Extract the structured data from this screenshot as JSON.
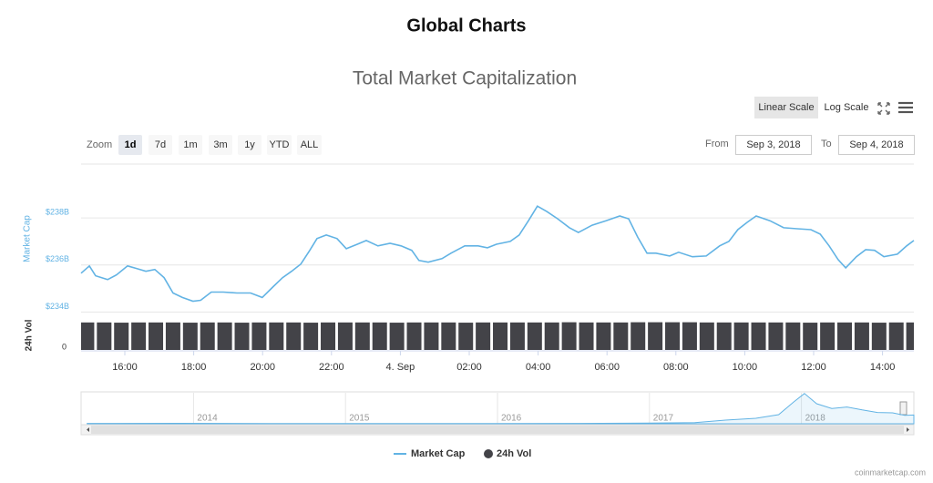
{
  "page": {
    "heading": "Global Charts"
  },
  "controls": {
    "zoom_label": "Zoom",
    "zoom": [
      "1d",
      "7d",
      "1m",
      "3m",
      "1y",
      "YTD",
      "ALL"
    ],
    "active_zoom": 0,
    "scales": [
      "Linear Scale",
      "Log Scale"
    ],
    "active_scale": 0,
    "from_label": "From",
    "from": "Sep 3, 2018",
    "to_label": "To",
    "to": "Sep 4, 2018"
  },
  "credit": "coinmarketcap.com",
  "chart_data": [
    {
      "type": "line",
      "title": "Total Market Capitalization",
      "ylabel": "Market Cap",
      "y2label": "24h Vol",
      "xlim": [
        14.73,
        38.91
      ],
      "xticks": [
        {
          "value": 16,
          "label": "16:00"
        },
        {
          "value": 18,
          "label": "18:00"
        },
        {
          "value": 20,
          "label": "20:00"
        },
        {
          "value": 22,
          "label": "22:00"
        },
        {
          "value": 24,
          "label": "4. Sep"
        },
        {
          "value": 26,
          "label": "02:00"
        },
        {
          "value": 28,
          "label": "04:00"
        },
        {
          "value": 30,
          "label": "06:00"
        },
        {
          "value": 32,
          "label": "08:00"
        },
        {
          "value": 34,
          "label": "10:00"
        },
        {
          "value": 36,
          "label": "12:00"
        },
        {
          "value": 38,
          "label": "14:00"
        }
      ],
      "ylim": [
        233.9,
        239.9
      ],
      "yticks": [
        {
          "value": 234,
          "label": "$234B"
        },
        {
          "value": 236,
          "label": "$236B"
        },
        {
          "value": 238,
          "label": "$238B"
        }
      ],
      "y2lim": [
        0,
        14
      ],
      "y2ticks": [
        0
      ],
      "grid": true,
      "log_scale": false,
      "legend": "bottom",
      "series": [
        {
          "name": "Market Cap",
          "color": "#62b3e4",
          "x": [
            14.73,
            14.97,
            15.15,
            15.5,
            15.76,
            16.08,
            16.34,
            16.61,
            16.87,
            17.14,
            17.4,
            17.67,
            17.98,
            18.2,
            18.51,
            18.86,
            19.25,
            19.65,
            19.99,
            20.31,
            20.58,
            20.84,
            21.11,
            21.37,
            21.58,
            21.85,
            22.16,
            22.43,
            22.75,
            23.01,
            23.35,
            23.7,
            24.02,
            24.33,
            24.54,
            24.81,
            25.21,
            25.47,
            25.87,
            26.26,
            26.53,
            26.79,
            27.19,
            27.45,
            27.72,
            27.98,
            28.25,
            28.57,
            28.91,
            29.17,
            29.57,
            29.97,
            30.37,
            30.63,
            30.89,
            31.16,
            31.42,
            31.82,
            32.08,
            32.48,
            32.88,
            33.27,
            33.54,
            33.8,
            34.07,
            34.33,
            34.73,
            35.13,
            35.52,
            35.92,
            36.19,
            36.45,
            36.71,
            36.93,
            37.24,
            37.51,
            37.77,
            38.04,
            38.43,
            38.7,
            38.91
          ],
          "values": [
            235.65,
            235.96,
            235.54,
            235.38,
            235.58,
            235.96,
            235.85,
            235.73,
            235.81,
            235.46,
            234.81,
            234.62,
            234.46,
            234.5,
            234.85,
            234.85,
            234.81,
            234.81,
            234.62,
            235.08,
            235.46,
            235.73,
            236.04,
            236.62,
            237.12,
            237.27,
            237.12,
            236.69,
            236.88,
            237.04,
            236.81,
            236.92,
            236.81,
            236.62,
            236.19,
            236.12,
            236.27,
            236.5,
            236.81,
            236.81,
            236.73,
            236.88,
            237.0,
            237.27,
            237.88,
            238.5,
            238.27,
            237.96,
            237.58,
            237.38,
            237.69,
            237.88,
            238.08,
            237.96,
            237.19,
            236.5,
            236.5,
            236.38,
            236.54,
            236.35,
            236.38,
            236.81,
            237.0,
            237.5,
            237.81,
            238.08,
            237.88,
            237.58,
            237.54,
            237.5,
            237.31,
            236.81,
            236.23,
            235.88,
            236.35,
            236.65,
            236.62,
            236.35,
            236.46,
            236.81,
            237.04
          ]
        },
        {
          "name": "24h Vol",
          "type": "bar",
          "axis": "y2",
          "color": "#434348",
          "x": [
            14.9,
            15.4,
            15.9,
            16.4,
            16.9,
            17.4,
            17.9,
            18.4,
            18.9,
            19.4,
            19.9,
            20.4,
            20.9,
            21.4,
            21.9,
            22.4,
            22.9,
            23.4,
            23.9,
            24.4,
            24.9,
            25.4,
            25.9,
            26.4,
            26.9,
            27.4,
            27.9,
            28.4,
            28.9,
            29.4,
            29.9,
            30.4,
            30.9,
            31.4,
            31.9,
            32.4,
            32.9,
            33.4,
            33.9,
            34.4,
            34.9,
            35.4,
            35.9,
            36.4,
            36.9,
            37.4,
            37.9,
            38.4,
            38.9
          ],
          "values": [
            13.2,
            13.2,
            13.1,
            13.2,
            13.2,
            13.2,
            13.1,
            13.2,
            13.2,
            13.1,
            13.2,
            13.2,
            13.2,
            13.1,
            13.2,
            13.2,
            13.2,
            13.2,
            13.1,
            13.2,
            13.2,
            13.2,
            13.1,
            13.2,
            13.2,
            13.2,
            13.2,
            13.2,
            13.3,
            13.2,
            13.2,
            13.2,
            13.3,
            13.3,
            13.3,
            13.3,
            13.2,
            13.2,
            13.2,
            13.2,
            13.2,
            13.2,
            13.1,
            13.2,
            13.2,
            13.2,
            13.1,
            13.2,
            13.2
          ]
        }
      ]
    },
    {
      "type": "area",
      "xlim": [
        2013.26,
        2018.74
      ],
      "xticks": [
        2014,
        2015,
        2016,
        2017,
        2018
      ],
      "ylim": [
        0,
        850
      ],
      "series": [
        {
          "color": "#62b3e4",
          "x": [
            2013.3,
            2013.9,
            2014.5,
            2015,
            2015.5,
            2016,
            2016.5,
            2017,
            2017.3,
            2017.5,
            2017.7,
            2017.85,
            2017.95,
            2018.02,
            2018.1,
            2018.2,
            2018.3,
            2018.4,
            2018.5,
            2018.6,
            2018.68,
            2018.74
          ],
          "values": [
            10,
            12,
            8,
            5,
            4,
            7,
            10,
            18,
            30,
            100,
            150,
            250,
            600,
            830,
            550,
            420,
            460,
            380,
            310,
            300,
            230,
            240
          ]
        }
      ]
    }
  ]
}
